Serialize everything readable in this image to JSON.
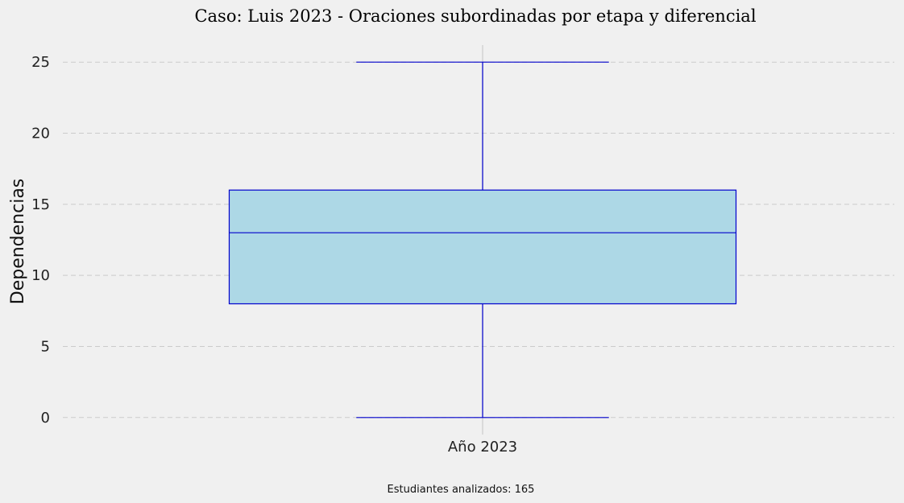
{
  "chart_data": {
    "type": "boxplot",
    "title": "Caso: Luis 2023 - Oraciones subordinadas por etapa y diferencial",
    "ylabel": "Dependencias",
    "xlabel": "",
    "categories": [
      "Año 2023"
    ],
    "boxes": [
      {
        "category": "Año 2023",
        "whisker_low": 0,
        "q1": 8,
        "median": 13,
        "q3": 16,
        "whisker_high": 25
      }
    ],
    "yticks": [
      0,
      5,
      10,
      15,
      20,
      25
    ],
    "ylim": [
      -1.2,
      26.2
    ],
    "grid": true,
    "colors": {
      "box_fill": "#add8e6",
      "box_edge": "#0000cc",
      "background": "#f0f0f0",
      "grid": "#cbcbcb"
    }
  },
  "footnote": "Estudiantes analizados: 165"
}
